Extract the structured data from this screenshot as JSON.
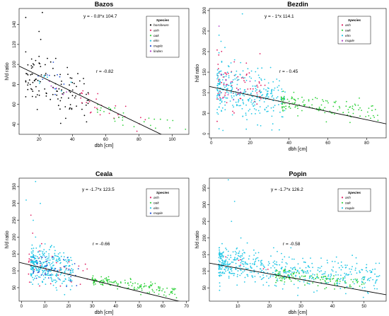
{
  "chart_data": [
    {
      "type": "scatter",
      "title": "Bazos",
      "xlabel": "dbh [cm]",
      "ylabel": "h/d ratio",
      "xlim": [
        8,
        110
      ],
      "ylim": [
        30,
        156
      ],
      "xticks": [
        20,
        40,
        60,
        80,
        100
      ],
      "yticks": [
        40,
        60,
        80,
        100,
        120,
        140
      ],
      "grid": false,
      "legend_position": "top-right",
      "equation": "y = - 0.8*x 104.7",
      "r_text": "r = -0.82",
      "trend": {
        "slope": -0.8,
        "intercept": 104.7
      },
      "legend_title": "Species",
      "series": [
        {
          "name": "hornbeam",
          "color": "#000000",
          "x_range": [
            12,
            50
          ],
          "y_center": 78,
          "y_spread": 12,
          "count": 110,
          "extra": [
            [
              12,
              147
            ],
            [
              22,
              152
            ],
            [
              20,
              133
            ],
            [
              21,
              125
            ],
            [
              20,
              108
            ],
            [
              25,
              106
            ],
            [
              30,
              106
            ],
            [
              36,
              46
            ],
            [
              33,
              41
            ]
          ]
        },
        {
          "name": "ash",
          "color": "#df2063",
          "x_range": [
            45,
            85
          ],
          "y_center": 53,
          "y_spread": 6,
          "count": 28,
          "extra": []
        },
        {
          "name": "oak",
          "color": "#30d23c",
          "x_range": [
            55,
            105
          ],
          "y_center": 44,
          "y_spread": 5,
          "count": 30,
          "extra": [
            [
              108,
              35
            ]
          ]
        },
        {
          "name": "elm",
          "color": "#22c7e6",
          "x_range": [
            20,
            40
          ],
          "y_center": 82,
          "y_spread": 6,
          "count": 8,
          "extra": []
        },
        {
          "name": "maple",
          "color": "#2250d6",
          "x_range": [
            18,
            35
          ],
          "y_center": 86,
          "y_spread": 8,
          "count": 10,
          "extra": []
        },
        {
          "name": "linden",
          "color": "#b03cc8",
          "x_range": [
            25,
            45
          ],
          "y_center": 75,
          "y_spread": 6,
          "count": 6,
          "extra": []
        }
      ]
    },
    {
      "type": "scatter",
      "title": "Bezdin",
      "xlabel": "dbh [cm]",
      "ylabel": "h/d ratio",
      "xlim": [
        -1,
        90
      ],
      "ylim": [
        -10,
        305
      ],
      "xticks": [
        0,
        20,
        40,
        60,
        80
      ],
      "yticks": [
        0,
        50,
        100,
        150,
        200,
        250,
        300
      ],
      "grid": false,
      "legend_position": "top-right",
      "equation": "y = - 1*x 114.1",
      "r_text": "r = - 0.45",
      "trend": {
        "slope": -1.0,
        "intercept": 114.1
      },
      "legend_title": "Species",
      "series": [
        {
          "name": "ash",
          "color": "#df2063",
          "x_range": [
            3,
            28
          ],
          "y_center": 120,
          "y_spread": 28,
          "count": 70,
          "extra": []
        },
        {
          "name": "oak",
          "color": "#30d23c",
          "x_range": [
            36,
            88
          ],
          "y_center": 62,
          "y_spread": 12,
          "count": 130,
          "extra": []
        },
        {
          "name": "elm",
          "color": "#22c7e6",
          "x_range": [
            3,
            38
          ],
          "y_center": 95,
          "y_spread": 30,
          "count": 300,
          "extra": [
            [
              4,
              240
            ],
            [
              5,
              225
            ],
            [
              7,
              210
            ],
            [
              16,
              292
            ],
            [
              12,
              180
            ],
            [
              26,
              160
            ],
            [
              4,
              12
            ],
            [
              6,
              8
            ]
          ]
        },
        {
          "name": "maple",
          "color": "#b03cc8",
          "x_range": [
            4,
            20
          ],
          "y_center": 110,
          "y_spread": 20,
          "count": 12,
          "extra": [
            [
              4,
              262
            ]
          ]
        }
      ]
    },
    {
      "type": "scatter",
      "title": "Ceala",
      "xlabel": "dbh [cm]",
      "ylabel": "h/d ratio",
      "xlim": [
        -1,
        71
      ],
      "ylim": [
        10,
        375
      ],
      "xticks": [
        0,
        10,
        20,
        30,
        40,
        50,
        60,
        70
      ],
      "yticks": [
        50,
        100,
        150,
        200,
        250,
        300,
        350
      ],
      "grid": false,
      "legend_position": "top-right",
      "equation": "y = -1.7*x 123.5",
      "r_text": "r = -0.66",
      "trend": {
        "slope": -1.7,
        "intercept": 123.5
      },
      "legend_title": "Species",
      "series": [
        {
          "name": "ash",
          "color": "#df2063",
          "x_range": [
            3,
            30
          ],
          "y_center": 105,
          "y_spread": 30,
          "count": 45,
          "extra": [
            [
              4,
              265
            ]
          ]
        },
        {
          "name": "oak",
          "color": "#30d23c",
          "x_range": [
            30,
            66
          ],
          "y_center": 55,
          "y_spread": 8,
          "count": 140,
          "extra": []
        },
        {
          "name": "elm",
          "color": "#22c7e6",
          "x_range": [
            4,
            22
          ],
          "y_center": 108,
          "y_spread": 28,
          "count": 320,
          "extra": [
            [
              6,
              365
            ],
            [
              2,
              310
            ],
            [
              8,
              300
            ],
            [
              5,
              250
            ],
            [
              6,
              200
            ],
            [
              10,
              180
            ]
          ]
        },
        {
          "name": "maple",
          "color": "#2250d6",
          "x_range": [
            5,
            25
          ],
          "y_center": 105,
          "y_spread": 18,
          "count": 40,
          "extra": []
        }
      ]
    },
    {
      "type": "scatter",
      "title": "Popin",
      "xlabel": "dbh [cm]",
      "ylabel": "h/d ratio",
      "xlim": [
        1,
        57
      ],
      "ylim": [
        10,
        380
      ],
      "xticks": [
        10,
        20,
        30,
        40,
        50
      ],
      "yticks": [
        50,
        100,
        150,
        200,
        250,
        300,
        350
      ],
      "grid": false,
      "legend_position": "top-right",
      "equation": "y = -1.7*x 126.2",
      "r_text": "r = -0.58",
      "trend": {
        "slope": -1.7,
        "intercept": 126.2
      },
      "legend_title": "Species",
      "series": [
        {
          "name": "ash",
          "color": "#df2063",
          "x_range": [
            6,
            30
          ],
          "y_center": 110,
          "y_spread": 20,
          "count": 6,
          "extra": []
        },
        {
          "name": "oak",
          "color": "#30d23c",
          "x_range": [
            22,
            50
          ],
          "y_center": 75,
          "y_spread": 10,
          "count": 140,
          "extra": []
        },
        {
          "name": "maple",
          "color": "#22c7e6",
          "x_range": [
            4,
            55
          ],
          "y_center": 100,
          "y_spread": 25,
          "count": 520,
          "extra": [
            [
              7,
              375
            ],
            [
              9,
              310
            ],
            [
              8,
              250
            ],
            [
              11,
              200
            ],
            [
              13,
              185
            ],
            [
              7,
              160
            ]
          ]
        }
      ]
    }
  ]
}
